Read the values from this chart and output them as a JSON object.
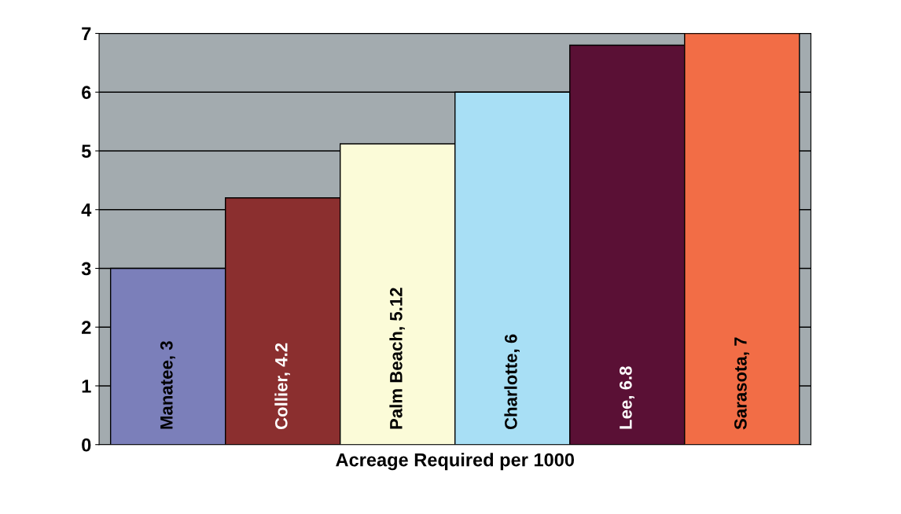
{
  "chart_data": {
    "type": "bar",
    "xlabel": "Acreage Required per 1000",
    "categories": [
      null,
      null,
      null,
      null,
      null,
      null
    ],
    "values": [
      3,
      4.2,
      5.12,
      6,
      6.8,
      7
    ],
    "value_labels": [
      "Manatee, 3",
      "Collier, 4.2",
      "Palm Beach, 5.12",
      "Charlotte, 6",
      "Lee, 6.8",
      "Sarasota, 7"
    ],
    "colors": [
      "#7b7fba",
      "#8b2f2f",
      "#fbfbd8",
      "#a8dff5",
      "#5a1035",
      "#f26d46"
    ],
    "ylim": [
      0,
      7
    ],
    "yticks": [
      0,
      1,
      2,
      3,
      4,
      5,
      6,
      7
    ],
    "grid": "y"
  }
}
